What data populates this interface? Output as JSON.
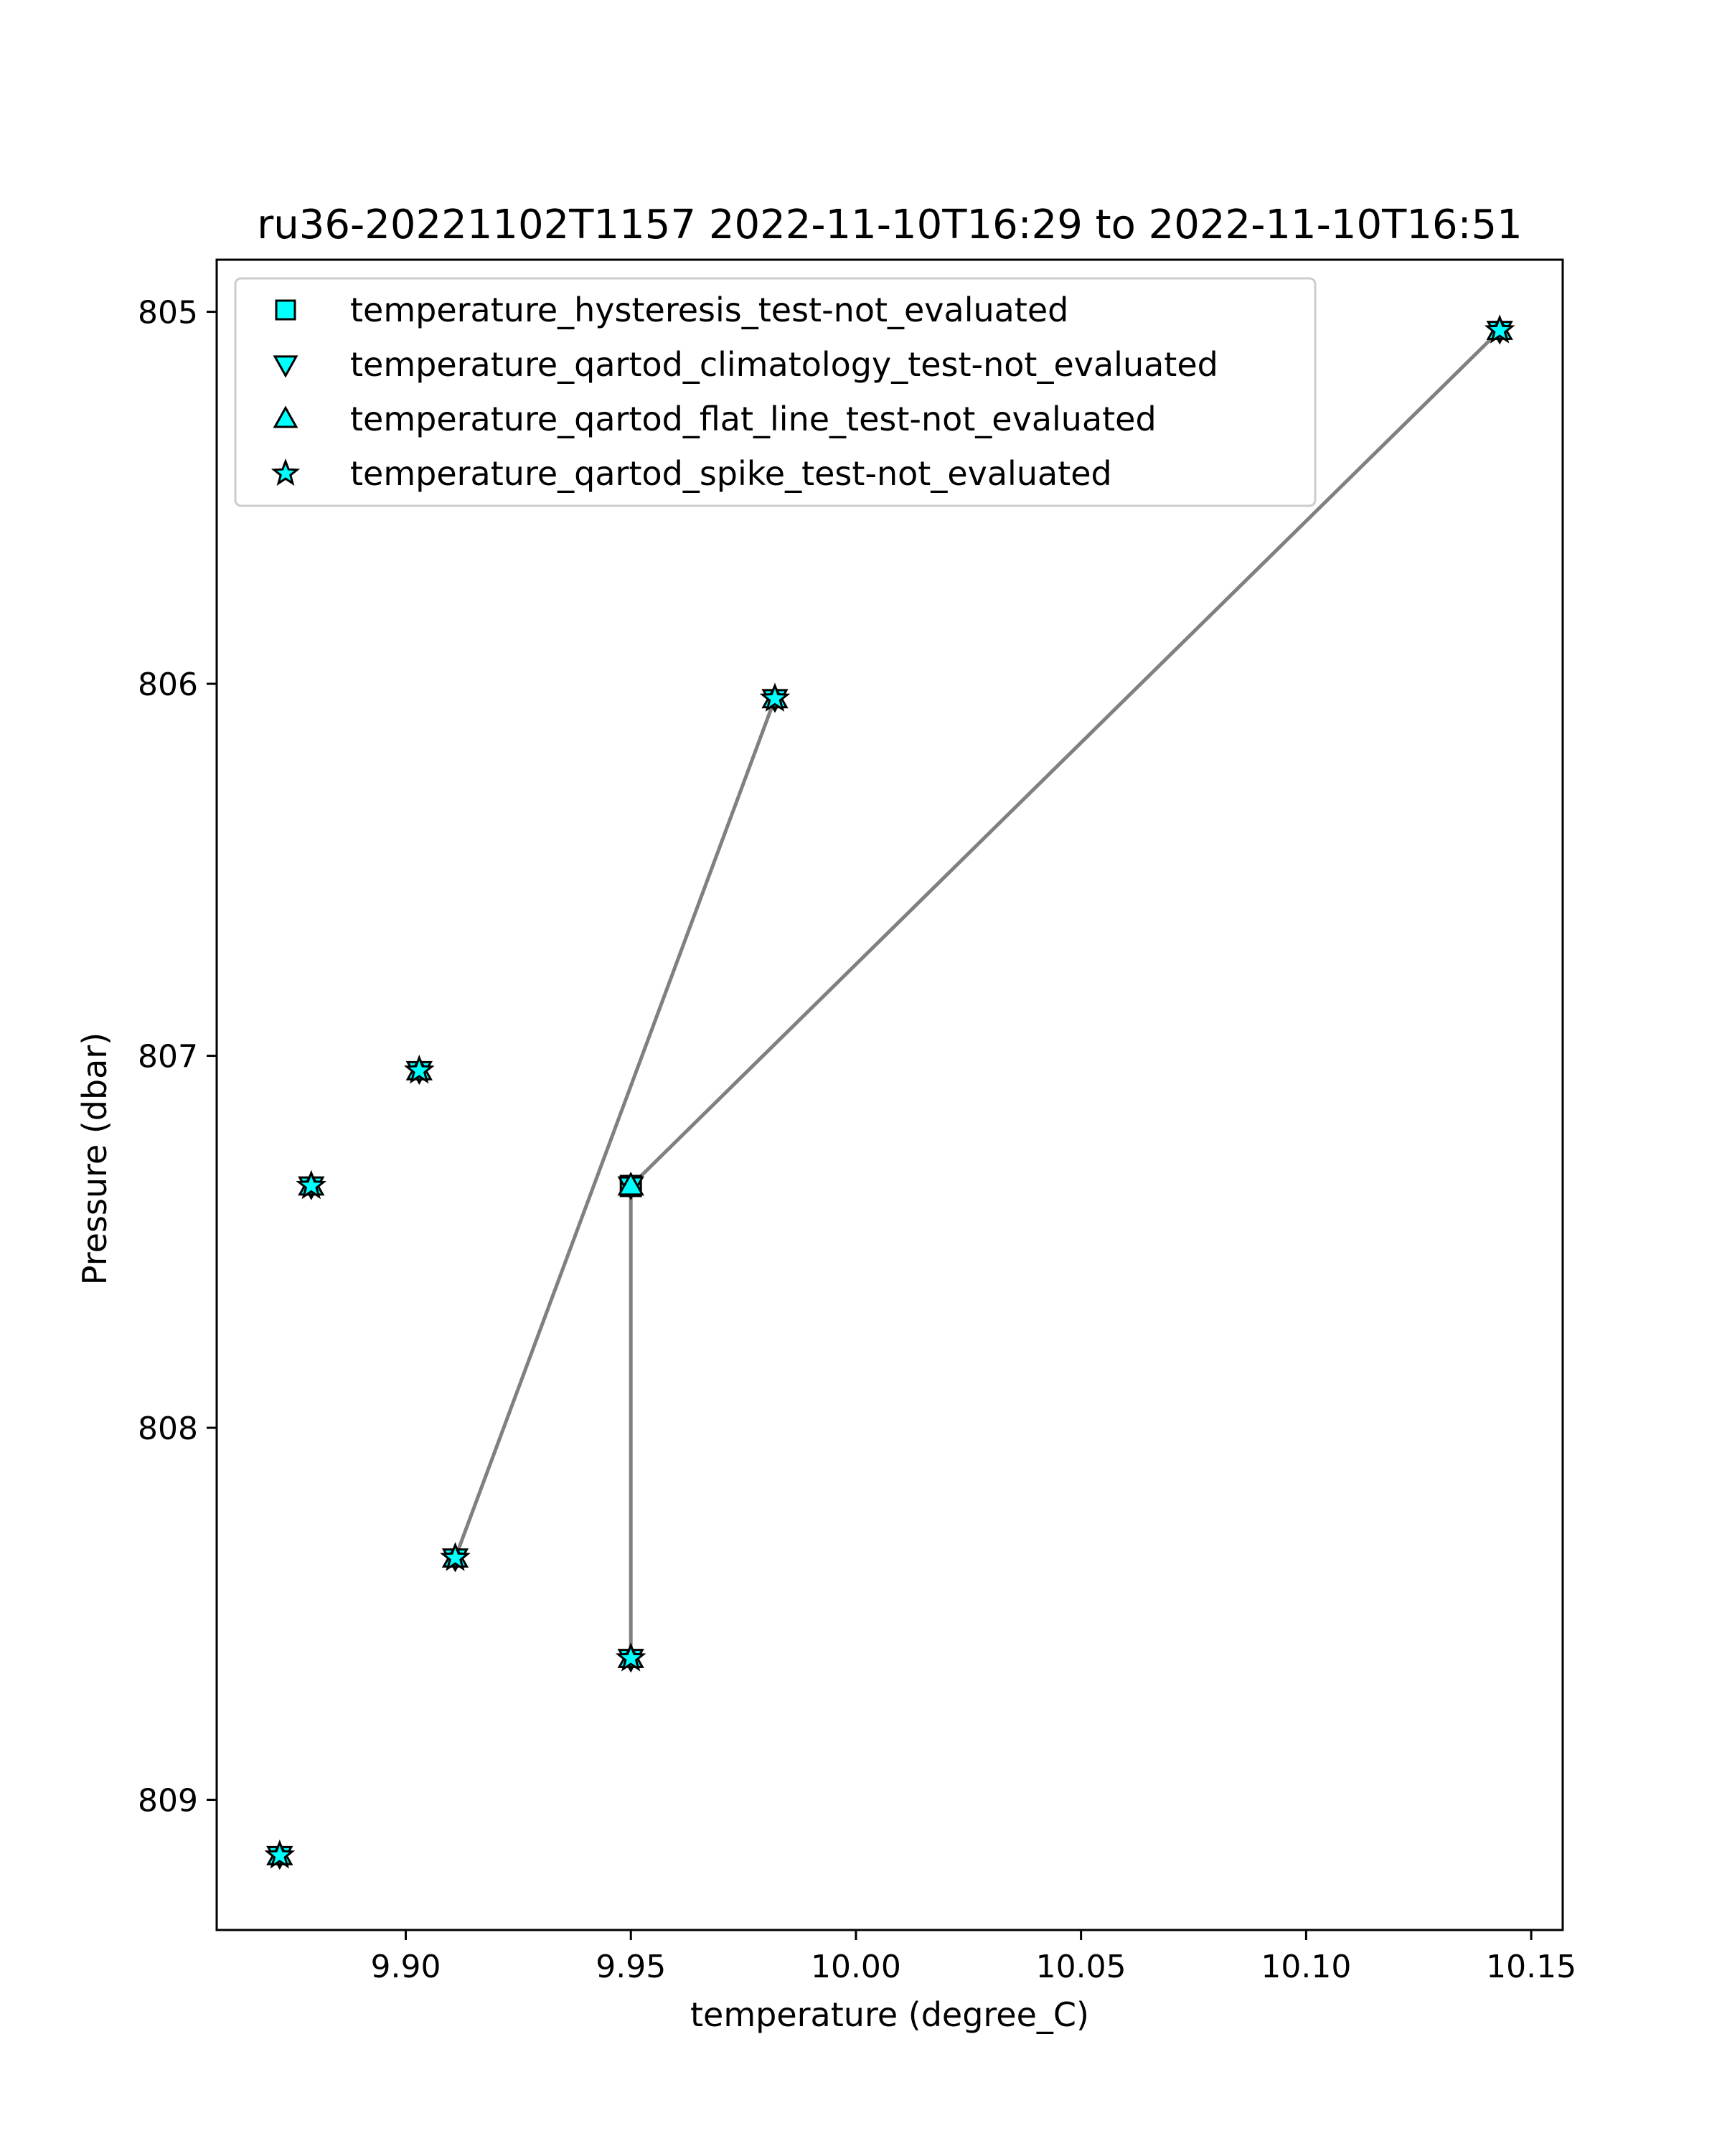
{
  "chart_data": {
    "type": "scatter",
    "title": "ru36-20221102T1157 2022-11-10T16:29 to 2022-11-10T16:51",
    "xlabel": "temperature (degree_C)",
    "ylabel": "Pressure (dbar)",
    "xlim": [
      9.858,
      10.157
    ],
    "ylim": [
      809.35,
      804.86
    ],
    "y_inverted": true,
    "grid": false,
    "legend_position": "upper-left",
    "xticks": [
      9.9,
      9.95,
      10.0,
      10.05,
      10.1,
      10.15
    ],
    "xtick_labels": [
      "9.90",
      "9.95",
      "10.00",
      "10.05",
      "10.10",
      "10.15"
    ],
    "yticks": [
      805,
      806,
      807,
      808,
      809
    ],
    "ytick_labels": [
      "805",
      "806",
      "807",
      "808",
      "809"
    ],
    "line_color": "#808080",
    "marker_fill": "#00ffff",
    "marker_edge": "#000000",
    "profile_lines": [
      [
        {
          "x": 9.911,
          "y": 808.35
        },
        {
          "x": 9.982,
          "y": 806.04
        }
      ],
      [
        {
          "x": 9.95,
          "y": 808.62
        },
        {
          "x": 9.95,
          "y": 807.35
        },
        {
          "x": 10.143,
          "y": 805.05
        }
      ]
    ],
    "points": [
      {
        "x": 10.143,
        "y": 805.05
      },
      {
        "x": 9.982,
        "y": 806.04
      },
      {
        "x": 9.903,
        "y": 807.04
      },
      {
        "x": 9.879,
        "y": 807.35
      },
      {
        "x": 9.95,
        "y": 807.35
      },
      {
        "x": 9.911,
        "y": 808.35
      },
      {
        "x": 9.95,
        "y": 808.62
      },
      {
        "x": 9.872,
        "y": 809.15
      }
    ],
    "series": [
      {
        "name": "temperature_hysteresis_test-not_evaluated",
        "marker": "square",
        "points": [
          4
        ]
      },
      {
        "name": "temperature_qartod_climatology_test-not_evaluated",
        "marker": "triangle-down",
        "points": [
          0,
          1,
          2,
          3,
          4,
          5,
          6,
          7
        ]
      },
      {
        "name": "temperature_qartod_flat_line_test-not_evaluated",
        "marker": "triangle-up",
        "points": [
          0,
          1,
          2,
          3,
          4,
          5,
          6,
          7
        ]
      },
      {
        "name": "temperature_qartod_spike_test-not_evaluated",
        "marker": "star",
        "points": [
          0,
          1,
          2,
          3,
          5,
          6,
          7
        ]
      }
    ]
  }
}
